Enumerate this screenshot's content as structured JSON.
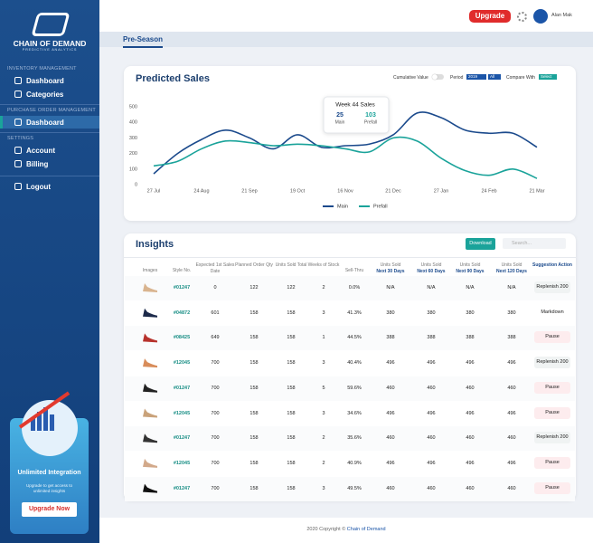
{
  "sidebar": {
    "brand": "CHAIN OF DEMAND",
    "tagline": "PREDICTIVE ANALYTICS",
    "sections": [
      {
        "title": "INVENTORY MANAGEMENT",
        "items": [
          "Dashboard",
          "Categories"
        ]
      },
      {
        "title": "PURCHASE ORDER MANAGEMENT",
        "items": [
          "Dashboard"
        ]
      },
      {
        "title": "SETTINGS",
        "items": [
          "Account",
          "Billing"
        ]
      }
    ],
    "logout": "Logout",
    "promo": {
      "title": "Unlimited Integration",
      "text": "Upgrade to get access to unlimited insights",
      "button": "Upgrade Now"
    }
  },
  "header": {
    "upgrade": "Upgrade",
    "user": "Alan Mak",
    "tab": "Pre-Season"
  },
  "chart_controls": {
    "cumulative": "Cumulative Value",
    "period": "Period",
    "period_value": "2019",
    "all": "All",
    "compare": "Compare With",
    "select": "Select"
  },
  "chart_data": {
    "type": "line",
    "title": "Predicted Sales",
    "categories": [
      "27 Jul",
      null,
      "24 Aug",
      null,
      "21 Sep",
      null,
      "19 Oct",
      null,
      "16 Nov",
      null,
      "21 Dec",
      null,
      "27 Jan",
      null,
      "24 Feb",
      null,
      "21 Mar"
    ],
    "series": [
      {
        "name": "Main",
        "color": "#1b4a8c",
        "values": [
          70,
          200,
          290,
          350,
          300,
          230,
          320,
          240,
          250,
          260,
          320,
          460,
          430,
          350,
          330,
          330,
          240
        ]
      },
      {
        "name": "Prefall",
        "color": "#1aa39a",
        "values": [
          120,
          150,
          230,
          280,
          270,
          250,
          260,
          250,
          230,
          210,
          300,
          280,
          170,
          90,
          60,
          100,
          40
        ]
      }
    ],
    "ylim": [
      0,
      500
    ],
    "yticks": [
      0,
      100,
      200,
      300,
      400,
      500
    ],
    "grid": false,
    "legend": "bottom",
    "annotation": {
      "title": "Week 44 Sales",
      "values": [
        25,
        103
      ],
      "labels": [
        "Main",
        "Prefall"
      ]
    }
  },
  "insights": {
    "title": "Insights",
    "download": "Download",
    "search": "Search...",
    "columns": [
      "Images",
      "Style No.",
      "Expected 1st Sales Date",
      "Planned Order Qty",
      "Units Sold Total",
      "Weeks of Stock",
      "Sell-Thru",
      {
        "line1": "Units Sold",
        "line2": "Next 30 Days"
      },
      {
        "line1": "Units Sold",
        "line2": "Next 60 Days"
      },
      {
        "line1": "Units Sold",
        "line2": "Next 90 Days"
      },
      {
        "line1": "Units Sold",
        "line2": "Next 120 Days"
      },
      "Suggestion Action"
    ],
    "rows": [
      [
        "#01247",
        "0",
        "122",
        "122",
        "2",
        "0.0%",
        "N/A",
        "N/A",
        "N/A",
        "N/A",
        "Replenish 200"
      ],
      [
        "#04872",
        "601",
        "158",
        "158",
        "3",
        "41.3%",
        "380",
        "380",
        "380",
        "380",
        "Markdown"
      ],
      [
        "#08425",
        "649",
        "158",
        "158",
        "1",
        "44.5%",
        "388",
        "388",
        "388",
        "388",
        "Pause"
      ],
      [
        "#12045",
        "700",
        "158",
        "158",
        "3",
        "40.4%",
        "496",
        "496",
        "496",
        "496",
        "Replenish 200"
      ],
      [
        "#01247",
        "700",
        "158",
        "158",
        "5",
        "59.6%",
        "460",
        "460",
        "460",
        "460",
        "Pause"
      ],
      [
        "#12045",
        "700",
        "158",
        "158",
        "3",
        "34.6%",
        "496",
        "496",
        "496",
        "496",
        "Pause"
      ],
      [
        "#01247",
        "700",
        "158",
        "158",
        "2",
        "35.6%",
        "460",
        "460",
        "460",
        "460",
        "Replenish 200"
      ],
      [
        "#12045",
        "700",
        "158",
        "158",
        "2",
        "40.9%",
        "496",
        "496",
        "496",
        "496",
        "Pause"
      ],
      [
        "#01247",
        "700",
        "158",
        "158",
        "3",
        "49.5%",
        "460",
        "460",
        "460",
        "460",
        "Pause"
      ]
    ]
  },
  "footer": {
    "text": "2020 Copyright ©",
    "link": "Chain of Demand"
  }
}
